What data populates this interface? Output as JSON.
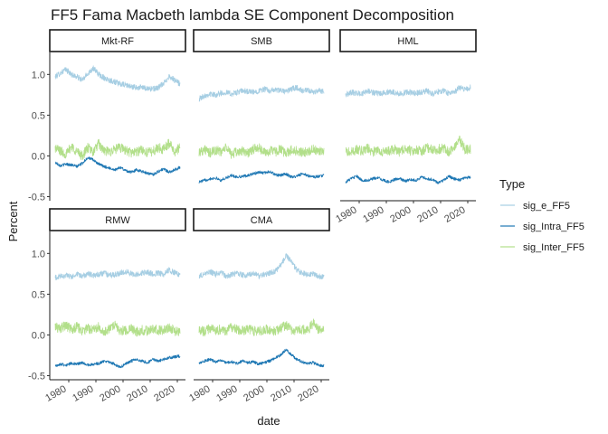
{
  "chart_data": {
    "type": "line",
    "title": "FF5 Fama Macbeth lambda SE Component Decomposition",
    "xlabel": "date",
    "ylabel": "Percent",
    "xlim": [
      1973,
      2023
    ],
    "ylim": [
      -0.55,
      1.27
    ],
    "x_ticks": [
      1980,
      1990,
      2000,
      2010,
      2020
    ],
    "y_ticks": [
      -0.5,
      0.0,
      0.5,
      1.0
    ],
    "y_tick_labels": [
      "-0.5",
      "0.0",
      "0.5",
      "1.0"
    ],
    "grid": false,
    "legend": {
      "title": "Type",
      "placement": "right",
      "entries": [
        {
          "name": "sig_e_FF5",
          "color": "#a6cee3"
        },
        {
          "name": "sig_Intra_FF5",
          "color": "#1f78b4"
        },
        {
          "name": "sig_Inter_FF5",
          "color": "#b2df8a"
        }
      ]
    },
    "facets": [
      {
        "label": "Mkt-RF",
        "series": [
          {
            "name": "sig_e_FF5",
            "color": "#a6cee3",
            "x": [
              1975,
              1977,
              1979,
              1981,
              1983,
              1985,
              1987,
              1989,
              1991,
              1993,
              1995,
              1997,
              1999,
              2001,
              2003,
              2005,
              2007,
              2009,
              2011,
              2013,
              2015,
              2017,
              2019,
              2021
            ],
            "values": [
              0.97,
              1.02,
              1.06,
              1.0,
              0.97,
              0.93,
              1.01,
              1.08,
              1.0,
              0.96,
              0.93,
              0.91,
              0.88,
              0.87,
              0.85,
              0.84,
              0.84,
              0.83,
              0.82,
              0.84,
              0.89,
              0.98,
              0.93,
              0.88
            ]
          },
          {
            "name": "sig_Intra_FF5",
            "color": "#1f78b4",
            "x": [
              1975,
              1977,
              1979,
              1981,
              1983,
              1985,
              1987,
              1989,
              1991,
              1993,
              1995,
              1997,
              1999,
              2001,
              2003,
              2005,
              2007,
              2009,
              2011,
              2013,
              2015,
              2017,
              2019,
              2021
            ],
            "values": [
              -0.08,
              -0.12,
              -0.1,
              -0.11,
              -0.13,
              -0.09,
              -0.02,
              -0.05,
              -0.1,
              -0.13,
              -0.15,
              -0.17,
              -0.14,
              -0.18,
              -0.2,
              -0.17,
              -0.19,
              -0.21,
              -0.23,
              -0.19,
              -0.16,
              -0.2,
              -0.17,
              -0.14
            ]
          },
          {
            "name": "sig_Inter_FF5",
            "color": "#b2df8a",
            "x": [
              1975,
              1977,
              1979,
              1981,
              1983,
              1985,
              1987,
              1989,
              1991,
              1993,
              1995,
              1997,
              1999,
              2001,
              2003,
              2005,
              2007,
              2009,
              2011,
              2013,
              2015,
              2017,
              2019,
              2021
            ],
            "values": [
              0.1,
              0.06,
              0.02,
              0.12,
              0.05,
              0.0,
              0.1,
              0.05,
              0.15,
              0.06,
              0.05,
              0.08,
              0.1,
              0.07,
              0.04,
              0.05,
              0.08,
              0.04,
              0.06,
              0.1,
              0.08,
              0.16,
              0.05,
              0.1
            ]
          }
        ]
      },
      {
        "label": "SMB",
        "series": [
          {
            "name": "sig_e_FF5",
            "color": "#a6cee3",
            "x": [
              1975,
              1977,
              1979,
              1981,
              1983,
              1985,
              1987,
              1989,
              1991,
              1993,
              1995,
              1997,
              1999,
              2001,
              2003,
              2005,
              2007,
              2009,
              2011,
              2013,
              2015,
              2017,
              2019,
              2021
            ],
            "values": [
              0.7,
              0.74,
              0.76,
              0.75,
              0.77,
              0.78,
              0.76,
              0.78,
              0.8,
              0.79,
              0.78,
              0.8,
              0.82,
              0.8,
              0.81,
              0.8,
              0.79,
              0.82,
              0.84,
              0.8,
              0.8,
              0.78,
              0.8,
              0.8
            ]
          },
          {
            "name": "sig_Intra_FF5",
            "color": "#1f78b4",
            "x": [
              1975,
              1977,
              1979,
              1981,
              1983,
              1985,
              1987,
              1989,
              1991,
              1993,
              1995,
              1997,
              1999,
              2001,
              2003,
              2005,
              2007,
              2009,
              2011,
              2013,
              2015,
              2017,
              2019,
              2021
            ],
            "values": [
              -0.32,
              -0.3,
              -0.28,
              -0.27,
              -0.3,
              -0.27,
              -0.24,
              -0.26,
              -0.25,
              -0.24,
              -0.22,
              -0.2,
              -0.21,
              -0.19,
              -0.23,
              -0.24,
              -0.22,
              -0.26,
              -0.25,
              -0.22,
              -0.24,
              -0.26,
              -0.25,
              -0.24
            ]
          },
          {
            "name": "sig_Inter_FF5",
            "color": "#b2df8a",
            "x": [
              1975,
              1977,
              1979,
              1981,
              1983,
              1985,
              1987,
              1989,
              1991,
              1993,
              1995,
              1997,
              1999,
              2001,
              2003,
              2005,
              2007,
              2009,
              2011,
              2013,
              2015,
              2017,
              2019,
              2021
            ],
            "values": [
              0.05,
              0.08,
              0.03,
              0.07,
              0.05,
              0.1,
              0.02,
              0.05,
              0.06,
              0.04,
              0.08,
              0.1,
              0.04,
              0.06,
              0.05,
              0.08,
              0.03,
              0.07,
              0.06,
              0.04,
              0.06,
              0.08,
              0.05,
              0.06
            ]
          }
        ]
      },
      {
        "label": "HML",
        "series": [
          {
            "name": "sig_e_FF5",
            "color": "#a6cee3",
            "x": [
              1975,
              1977,
              1979,
              1981,
              1983,
              1985,
              1987,
              1989,
              1991,
              1993,
              1995,
              1997,
              1999,
              2001,
              2003,
              2005,
              2007,
              2009,
              2011,
              2013,
              2015,
              2017,
              2019,
              2021
            ],
            "values": [
              0.75,
              0.78,
              0.77,
              0.76,
              0.8,
              0.78,
              0.76,
              0.77,
              0.79,
              0.78,
              0.76,
              0.78,
              0.78,
              0.77,
              0.78,
              0.8,
              0.76,
              0.79,
              0.8,
              0.77,
              0.78,
              0.84,
              0.82,
              0.84
            ]
          },
          {
            "name": "sig_Intra_FF5",
            "color": "#1f78b4",
            "x": [
              1975,
              1977,
              1979,
              1981,
              1983,
              1985,
              1987,
              1989,
              1991,
              1993,
              1995,
              1997,
              1999,
              2001,
              2003,
              2005,
              2007,
              2009,
              2011,
              2013,
              2015,
              2017,
              2019,
              2021
            ],
            "values": [
              -0.32,
              -0.28,
              -0.25,
              -0.3,
              -0.3,
              -0.28,
              -0.27,
              -0.3,
              -0.32,
              -0.29,
              -0.28,
              -0.31,
              -0.29,
              -0.3,
              -0.26,
              -0.28,
              -0.29,
              -0.33,
              -0.3,
              -0.25,
              -0.28,
              -0.3,
              -0.27,
              -0.26
            ]
          },
          {
            "name": "sig_Inter_FF5",
            "color": "#b2df8a",
            "x": [
              1975,
              1977,
              1979,
              1981,
              1983,
              1985,
              1987,
              1989,
              1991,
              1993,
              1995,
              1997,
              1999,
              2001,
              2003,
              2005,
              2007,
              2009,
              2011,
              2013,
              2015,
              2017,
              2019,
              2021
            ],
            "values": [
              0.05,
              0.04,
              0.08,
              0.06,
              0.1,
              0.05,
              0.07,
              0.05,
              0.06,
              0.08,
              0.05,
              0.1,
              0.06,
              0.08,
              0.06,
              0.1,
              0.07,
              0.08,
              0.1,
              0.05,
              0.1,
              0.2,
              0.08,
              0.08
            ]
          }
        ]
      },
      {
        "label": "RMW",
        "series": [
          {
            "name": "sig_e_FF5",
            "color": "#a6cee3",
            "x": [
              1975,
              1977,
              1979,
              1981,
              1983,
              1985,
              1987,
              1989,
              1991,
              1993,
              1995,
              1997,
              1999,
              2001,
              2003,
              2005,
              2007,
              2009,
              2011,
              2013,
              2015,
              2017,
              2019,
              2021
            ],
            "values": [
              0.7,
              0.72,
              0.73,
              0.71,
              0.74,
              0.72,
              0.75,
              0.73,
              0.74,
              0.76,
              0.73,
              0.74,
              0.76,
              0.78,
              0.75,
              0.74,
              0.76,
              0.77,
              0.75,
              0.76,
              0.74,
              0.8,
              0.76,
              0.74
            ]
          },
          {
            "name": "sig_Intra_FF5",
            "color": "#1f78b4",
            "x": [
              1975,
              1977,
              1979,
              1981,
              1983,
              1985,
              1987,
              1989,
              1991,
              1993,
              1995,
              1997,
              1999,
              2001,
              2003,
              2005,
              2007,
              2009,
              2011,
              2013,
              2015,
              2017,
              2019,
              2021
            ],
            "values": [
              -0.38,
              -0.36,
              -0.37,
              -0.35,
              -0.36,
              -0.34,
              -0.37,
              -0.36,
              -0.35,
              -0.32,
              -0.33,
              -0.36,
              -0.4,
              -0.35,
              -0.32,
              -0.3,
              -0.32,
              -0.34,
              -0.3,
              -0.32,
              -0.3,
              -0.28,
              -0.27,
              -0.26
            ]
          },
          {
            "name": "sig_Inter_FF5",
            "color": "#b2df8a",
            "x": [
              1975,
              1977,
              1979,
              1981,
              1983,
              1985,
              1987,
              1989,
              1991,
              1993,
              1995,
              1997,
              1999,
              2001,
              2003,
              2005,
              2007,
              2009,
              2011,
              2013,
              2015,
              2017,
              2019,
              2021
            ],
            "values": [
              0.1,
              0.08,
              0.12,
              0.06,
              0.1,
              0.05,
              0.08,
              0.06,
              0.1,
              0.04,
              0.08,
              0.12,
              0.05,
              0.06,
              0.08,
              0.04,
              0.06,
              0.05,
              0.08,
              0.06,
              0.05,
              0.1,
              0.05,
              0.04
            ]
          }
        ]
      },
      {
        "label": "CMA",
        "series": [
          {
            "name": "sig_e_FF5",
            "color": "#a6cee3",
            "x": [
              1975,
              1977,
              1979,
              1981,
              1983,
              1985,
              1987,
              1989,
              1991,
              1993,
              1995,
              1997,
              1999,
              2001,
              2003,
              2005,
              2007,
              2009,
              2011,
              2013,
              2015,
              2017,
              2019,
              2021
            ],
            "values": [
              0.72,
              0.75,
              0.78,
              0.74,
              0.77,
              0.72,
              0.74,
              0.76,
              0.73,
              0.74,
              0.76,
              0.72,
              0.74,
              0.76,
              0.78,
              0.85,
              0.97,
              0.9,
              0.8,
              0.76,
              0.74,
              0.76,
              0.72,
              0.72
            ]
          },
          {
            "name": "sig_Intra_FF5",
            "color": "#1f78b4",
            "x": [
              1975,
              1977,
              1979,
              1981,
              1983,
              1985,
              1987,
              1989,
              1991,
              1993,
              1995,
              1997,
              1999,
              2001,
              2003,
              2005,
              2007,
              2009,
              2011,
              2013,
              2015,
              2017,
              2019,
              2021
            ],
            "values": [
              -0.34,
              -0.32,
              -0.3,
              -0.33,
              -0.31,
              -0.34,
              -0.33,
              -0.35,
              -0.32,
              -0.34,
              -0.33,
              -0.36,
              -0.34,
              -0.32,
              -0.28,
              -0.25,
              -0.18,
              -0.24,
              -0.3,
              -0.33,
              -0.35,
              -0.34,
              -0.37,
              -0.38
            ]
          },
          {
            "name": "sig_Inter_FF5",
            "color": "#b2df8a",
            "x": [
              1975,
              1977,
              1979,
              1981,
              1983,
              1985,
              1987,
              1989,
              1991,
              1993,
              1995,
              1997,
              1999,
              2001,
              2003,
              2005,
              2007,
              2009,
              2011,
              2013,
              2015,
              2017,
              2019,
              2021
            ],
            "values": [
              0.06,
              0.04,
              0.08,
              0.05,
              0.07,
              0.05,
              0.1,
              0.06,
              0.05,
              0.08,
              0.05,
              0.04,
              0.07,
              0.06,
              0.05,
              0.08,
              0.12,
              0.06,
              0.05,
              0.07,
              0.05,
              0.15,
              0.06,
              0.05
            ]
          }
        ]
      }
    ]
  }
}
